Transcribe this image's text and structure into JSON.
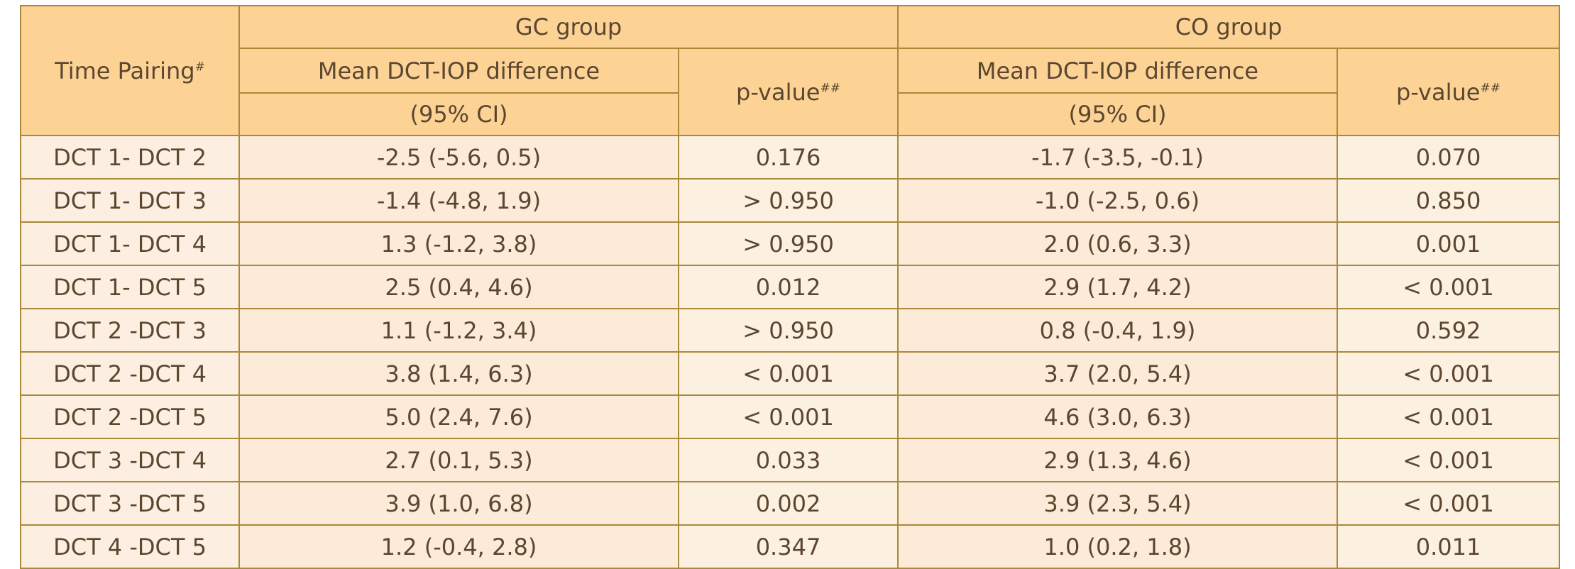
{
  "header": {
    "time_pairing": "Time Pairing",
    "time_pairing_sup": "#",
    "gc_group": "GC group",
    "co_group": "CO group",
    "mean_line1": "Mean DCT-IOP difference",
    "mean_line2": "(95% CI)",
    "p_value": "p-value",
    "p_value_sup": "##"
  },
  "rows": [
    {
      "pair": "DCT 1- DCT 2",
      "gc_mean": "-2.5 (-5.6, 0.5)",
      "gc_p": "0.176",
      "gc_p_bold": false,
      "co_mean": "-1.7 (-3.5, -0.1)",
      "co_p": "0.070",
      "co_p_bold": false
    },
    {
      "pair": "DCT 1- DCT 3",
      "gc_mean": "-1.4 (-4.8, 1.9)",
      "gc_p": "> 0.950",
      "gc_p_bold": false,
      "co_mean": "-1.0 (-2.5, 0.6)",
      "co_p": "0.850",
      "co_p_bold": false
    },
    {
      "pair": "DCT 1- DCT 4",
      "gc_mean": "1.3 (-1.2, 3.8)",
      "gc_p": "> 0.950",
      "gc_p_bold": false,
      "co_mean": "2.0 (0.6, 3.3)",
      "co_p": "0.001",
      "co_p_bold": true
    },
    {
      "pair": "DCT 1- DCT 5",
      "gc_mean": "2.5 (0.4, 4.6)",
      "gc_p": "0.012",
      "gc_p_bold": false,
      "co_mean": "2.9 (1.7, 4.2)",
      "co_p": "< 0.001",
      "co_p_bold": true
    },
    {
      "pair": "DCT 2 -DCT 3",
      "gc_mean": "1.1 (-1.2, 3.4)",
      "gc_p": "> 0.950",
      "gc_p_bold": false,
      "co_mean": "0.8 (-0.4, 1.9)",
      "co_p": "0.592",
      "co_p_bold": false
    },
    {
      "pair": "DCT 2 -DCT 4",
      "gc_mean": "3.8 (1.4, 6.3)",
      "gc_p": "< 0.001",
      "gc_p_bold": true,
      "co_mean": "3.7 (2.0, 5.4)",
      "co_p": "< 0.001",
      "co_p_bold": true
    },
    {
      "pair": "DCT 2 -DCT 5",
      "gc_mean": "5.0 (2.4, 7.6)",
      "gc_p": "< 0.001",
      "gc_p_bold": true,
      "co_mean": "4.6 (3.0, 6.3)",
      "co_p": "< 0.001",
      "co_p_bold": true
    },
    {
      "pair": "DCT 3 -DCT 4",
      "gc_mean": "2.7 (0.1, 5.3)",
      "gc_p": "0.033",
      "gc_p_bold": false,
      "co_mean": "2.9 (1.3, 4.6)",
      "co_p": "< 0.001",
      "co_p_bold": true
    },
    {
      "pair": "DCT 3 -DCT 5",
      "gc_mean": "3.9 (1.0, 6.8)",
      "gc_p": "0.002",
      "gc_p_bold": true,
      "co_mean": "3.9 (2.3, 5.4)",
      "co_p": "< 0.001",
      "co_p_bold": true
    },
    {
      "pair": "DCT 4 -DCT 5",
      "gc_mean": "1.2 (-0.4, 2.8)",
      "gc_p": "0.347",
      "gc_p_bold": false,
      "co_mean": "1.0 (0.2, 1.8)",
      "co_p": "0.011",
      "co_p_bold": false
    }
  ],
  "colors": {
    "header_bg": "#fcd395",
    "body_bg": "#fcebd8",
    "border": "#a88a3a",
    "text": "#5b4630"
  }
}
